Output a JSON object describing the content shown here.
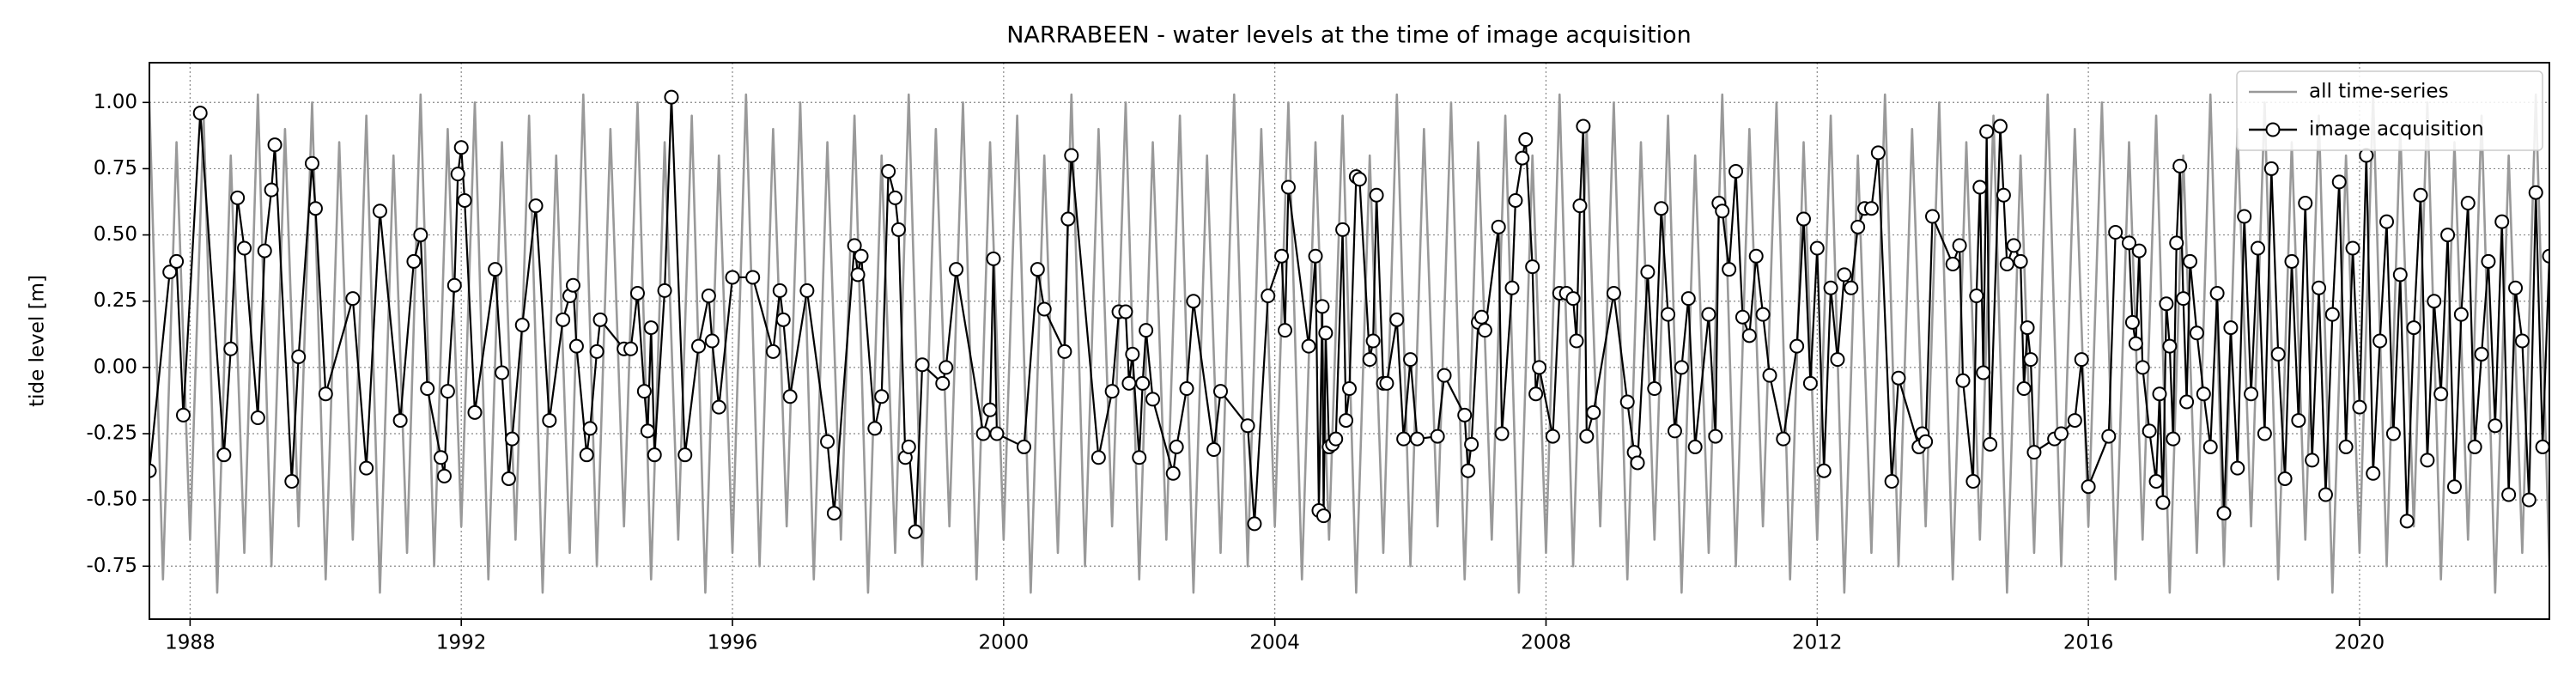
{
  "chart_data": {
    "type": "line",
    "title": "NARRABEEN - water levels at the time of image acquisition",
    "ylabel": "tide level [m]",
    "xlim": [
      1987.4,
      2022.8
    ],
    "ylim": [
      -0.95,
      1.15
    ],
    "xticks": [
      1988,
      1992,
      1996,
      2000,
      2004,
      2008,
      2012,
      2016,
      2020
    ],
    "yticks": [
      {
        "value": -0.75,
        "label": "-0.75"
      },
      {
        "value": -0.5,
        "label": "-0.50"
      },
      {
        "value": -0.25,
        "label": "-0.25"
      },
      {
        "value": 0,
        "label": "0.00"
      },
      {
        "value": 0.25,
        "label": "0.25"
      },
      {
        "value": 0.5,
        "label": "0.50"
      },
      {
        "value": 0.75,
        "label": "0.75"
      },
      {
        "value": 1,
        "label": "1.00"
      }
    ],
    "grid": true,
    "legend": "upper right",
    "series": [
      {
        "name": "all time-series",
        "color": "#999999",
        "x": [
          1987.4,
          1987.6,
          1987.8,
          1988,
          1988.2,
          1988.4,
          1988.6,
          1988.8,
          1989,
          1989.2,
          1989.4,
          1989.6,
          1989.8,
          1990,
          1990.2,
          1990.4,
          1990.6,
          1990.8,
          1991,
          1991.2,
          1991.4,
          1991.6,
          1991.8,
          1992,
          1992.2,
          1992.4,
          1992.6,
          1992.8,
          1993,
          1993.2,
          1993.4,
          1993.6,
          1993.8,
          1994,
          1994.2,
          1994.4,
          1994.6,
          1994.8,
          1995,
          1995.2,
          1995.4,
          1995.6,
          1995.8,
          1996,
          1996.2,
          1996.4,
          1996.6,
          1996.8,
          1997,
          1997.2,
          1997.4,
          1997.6,
          1997.8,
          1998,
          1998.2,
          1998.4,
          1998.6,
          1998.8,
          1999,
          1999.2,
          1999.4,
          1999.6,
          1999.8,
          2000,
          2000.2,
          2000.4,
          2000.6,
          2000.8,
          2001,
          2001.2,
          2001.4,
          2001.6,
          2001.8,
          2002,
          2002.2,
          2002.4,
          2002.6,
          2002.8,
          2003,
          2003.2,
          2003.4,
          2003.6,
          2003.8,
          2004,
          2004.2,
          2004.4,
          2004.6,
          2004.8,
          2005,
          2005.2,
          2005.4,
          2005.6,
          2005.8,
          2006,
          2006.2,
          2006.4,
          2006.6,
          2006.8,
          2007,
          2007.2,
          2007.4,
          2007.6,
          2007.8,
          2008,
          2008.2,
          2008.4,
          2008.6,
          2008.8,
          2009,
          2009.2,
          2009.4,
          2009.6,
          2009.8,
          2010,
          2010.2,
          2010.4,
          2010.6,
          2010.8,
          2011,
          2011.2,
          2011.4,
          2011.6,
          2011.8,
          2012,
          2012.2,
          2012.4,
          2012.6,
          2012.8,
          2013,
          2013.2,
          2013.4,
          2013.6,
          2013.8,
          2014,
          2014.2,
          2014.4,
          2014.6,
          2014.8,
          2015,
          2015.2,
          2015.4,
          2015.6,
          2015.8,
          2016,
          2016.2,
          2016.4,
          2016.6,
          2016.8,
          2017,
          2017.2,
          2017.4,
          2017.6,
          2017.8,
          2018,
          2018.2,
          2018.4,
          2018.6,
          2018.8,
          2019,
          2019.2,
          2019.4,
          2019.6,
          2019.8,
          2020,
          2020.2,
          2020.4,
          2020.6,
          2020.8,
          2021,
          2021.2,
          2021.4,
          2021.6,
          2021.8,
          2022,
          2022.2,
          2022.4,
          2022.6,
          2022.8
        ],
        "values": [
          1.0,
          -0.8,
          0.85,
          -0.65,
          0.95,
          -0.85,
          0.8,
          -0.7,
          1.03,
          -0.75,
          0.9,
          -0.6,
          1.0,
          -0.8,
          0.85,
          -0.65,
          0.95,
          -0.85,
          0.8,
          -0.7,
          1.03,
          -0.75,
          0.9,
          -0.6,
          1.0,
          -0.8,
          0.85,
          -0.65,
          0.95,
          -0.85,
          0.8,
          -0.7,
          1.03,
          -0.75,
          0.9,
          -0.6,
          1.0,
          -0.8,
          0.85,
          -0.65,
          0.95,
          -0.85,
          0.8,
          -0.7,
          1.03,
          -0.75,
          0.9,
          -0.6,
          1.0,
          -0.8,
          0.85,
          -0.65,
          0.95,
          -0.85,
          0.8,
          -0.7,
          1.03,
          -0.75,
          0.9,
          -0.6,
          1.0,
          -0.8,
          0.85,
          -0.65,
          0.95,
          -0.85,
          0.8,
          -0.7,
          1.03,
          -0.75,
          0.9,
          -0.6,
          1.0,
          -0.8,
          0.85,
          -0.65,
          0.95,
          -0.85,
          0.8,
          -0.7,
          1.03,
          -0.75,
          0.9,
          -0.6,
          1.0,
          -0.8,
          0.85,
          -0.65,
          0.95,
          -0.85,
          0.8,
          -0.7,
          1.03,
          -0.75,
          0.9,
          -0.6,
          1.0,
          -0.8,
          0.85,
          -0.65,
          0.95,
          -0.85,
          0.8,
          -0.7,
          1.03,
          -0.75,
          0.9,
          -0.6,
          1.0,
          -0.8,
          0.85,
          -0.65,
          0.95,
          -0.85,
          0.8,
          -0.7,
          1.03,
          -0.75,
          0.9,
          -0.6,
          1.0,
          -0.8,
          0.85,
          -0.65,
          0.95,
          -0.85,
          0.8,
          -0.7,
          1.03,
          -0.75,
          0.9,
          -0.6,
          1.0,
          -0.8,
          0.85,
          -0.65,
          0.95,
          -0.85,
          0.8,
          -0.7,
          1.03,
          -0.75,
          0.9,
          -0.6,
          1.0,
          -0.8,
          0.85,
          -0.65,
          0.95,
          -0.85,
          0.8,
          -0.7,
          1.03,
          -0.75,
          0.9,
          -0.6,
          1.0,
          -0.8,
          0.85,
          -0.65,
          0.95,
          -0.85,
          0.8,
          -0.7,
          1.03,
          -0.75,
          0.9,
          -0.6,
          1.0,
          -0.8,
          0.85,
          -0.65,
          0.95,
          -0.85,
          0.8,
          -0.7,
          1.03,
          -0.75
        ]
      },
      {
        "name": "image acquisition",
        "color": "#000000",
        "marker_fill": "#ffffff",
        "x": [
          1987.4,
          1987.7,
          1987.8,
          1987.9,
          1988.15,
          1988.5,
          1988.6,
          1988.7,
          1988.8,
          1989.0,
          1989.1,
          1989.2,
          1989.25,
          1989.5,
          1989.6,
          1989.8,
          1989.85,
          1990.0,
          1990.4,
          1990.6,
          1990.8,
          1991.1,
          1991.3,
          1991.4,
          1991.5,
          1991.7,
          1991.75,
          1991.8,
          1991.9,
          1991.95,
          1992.0,
          1992.05,
          1992.2,
          1992.5,
          1992.6,
          1992.7,
          1992.75,
          1992.9,
          1993.1,
          1993.3,
          1993.5,
          1993.6,
          1993.65,
          1993.7,
          1993.85,
          1993.9,
          1994.0,
          1994.05,
          1994.4,
          1994.5,
          1994.6,
          1994.7,
          1994.75,
          1994.8,
          1994.85,
          1995.0,
          1995.1,
          1995.3,
          1995.5,
          1995.65,
          1995.7,
          1995.8,
          1996.0,
          1996.3,
          1996.6,
          1996.7,
          1996.75,
          1996.85,
          1997.1,
          1997.4,
          1997.5,
          1997.8,
          1997.85,
          1997.9,
          1998.1,
          1998.2,
          1998.3,
          1998.4,
          1998.45,
          1998.55,
          1998.6,
          1998.7,
          1998.8,
          1999.1,
          1999.15,
          1999.3,
          1999.7,
          1999.8,
          1999.85,
          1999.9,
          2000.3,
          2000.5,
          2000.6,
          2000.9,
          2000.95,
          2001.0,
          2001.4,
          2001.6,
          2001.7,
          2001.8,
          2001.85,
          2001.9,
          2002.0,
          2002.05,
          2002.1,
          2002.2,
          2002.5,
          2002.55,
          2002.7,
          2002.8,
          2003.1,
          2003.2,
          2003.6,
          2003.7,
          2003.9,
          2004.1,
          2004.15,
          2004.2,
          2004.5,
          2004.6,
          2004.65,
          2004.7,
          2004.72,
          2004.75,
          2004.8,
          2004.85,
          2004.9,
          2005.0,
          2005.05,
          2005.1,
          2005.2,
          2005.25,
          2005.4,
          2005.45,
          2005.5,
          2005.6,
          2005.65,
          2005.8,
          2005.9,
          2006.0,
          2006.1,
          2006.4,
          2006.5,
          2006.8,
          2006.85,
          2006.9,
          2007.0,
          2007.05,
          2007.1,
          2007.3,
          2007.35,
          2007.5,
          2007.55,
          2007.65,
          2007.7,
          2007.8,
          2007.85,
          2007.9,
          2008.1,
          2008.2,
          2008.3,
          2008.4,
          2008.45,
          2008.5,
          2008.55,
          2008.6,
          2008.7,
          2009.0,
          2009.2,
          2009.3,
          2009.35,
          2009.5,
          2009.6,
          2009.7,
          2009.8,
          2009.9,
          2010.0,
          2010.1,
          2010.2,
          2010.4,
          2010.5,
          2010.55,
          2010.6,
          2010.7,
          2010.8,
          2010.9,
          2011.0,
          2011.1,
          2011.2,
          2011.3,
          2011.5,
          2011.7,
          2011.8,
          2011.9,
          2012.0,
          2012.1,
          2012.2,
          2012.3,
          2012.4,
          2012.5,
          2012.6,
          2012.7,
          2012.8,
          2012.9,
          2013.1,
          2013.2,
          2013.5,
          2013.55,
          2013.6,
          2013.7,
          2014.0,
          2014.1,
          2014.15,
          2014.3,
          2014.35,
          2014.4,
          2014.45,
          2014.5,
          2014.55,
          2014.7,
          2014.75,
          2014.8,
          2014.9,
          2015.0,
          2015.05,
          2015.1,
          2015.15,
          2015.2,
          2015.5,
          2015.6,
          2015.8,
          2015.9,
          2016.0,
          2016.3,
          2016.4,
          2016.6,
          2016.65,
          2016.7,
          2016.75,
          2016.8,
          2016.9,
          2017.0,
          2017.05,
          2017.1,
          2017.15,
          2017.2,
          2017.25,
          2017.3,
          2017.35,
          2017.4,
          2017.45,
          2017.5,
          2017.6,
          2017.7,
          2017.8,
          2017.9,
          2018.0,
          2018.1,
          2018.2,
          2018.3,
          2018.4,
          2018.5,
          2018.6,
          2018.7,
          2018.8,
          2018.9,
          2019.0,
          2019.1,
          2019.2,
          2019.3,
          2019.4,
          2019.5,
          2019.6,
          2019.7,
          2019.8,
          2019.9,
          2020.0,
          2020.1,
          2020.2,
          2020.3,
          2020.4,
          2020.5,
          2020.6,
          2020.7,
          2020.8,
          2020.9,
          2021.0,
          2021.1,
          2021.2,
          2021.3,
          2021.4,
          2021.5,
          2021.6,
          2021.7,
          2021.8,
          2021.9,
          2022.0,
          2022.1,
          2022.2,
          2022.3,
          2022.4,
          2022.5,
          2022.6,
          2022.7,
          2022.8
        ],
        "values": [
          -0.39,
          0.36,
          0.4,
          -0.18,
          0.96,
          -0.33,
          0.07,
          0.64,
          0.45,
          -0.19,
          0.44,
          0.67,
          0.84,
          -0.43,
          0.04,
          0.77,
          0.6,
          -0.1,
          0.26,
          -0.38,
          0.59,
          -0.2,
          0.4,
          0.5,
          -0.08,
          -0.34,
          -0.41,
          -0.09,
          0.31,
          0.73,
          0.83,
          0.63,
          -0.17,
          0.37,
          -0.02,
          -0.42,
          -0.27,
          0.16,
          0.61,
          -0.2,
          0.18,
          0.27,
          0.31,
          0.08,
          -0.33,
          -0.23,
          0.06,
          0.18,
          0.07,
          0.07,
          0.28,
          -0.09,
          -0.24,
          0.15,
          -0.33,
          0.29,
          1.02,
          -0.33,
          0.08,
          0.27,
          0.1,
          -0.15,
          0.34,
          0.34,
          0.06,
          0.29,
          0.18,
          -0.11,
          0.29,
          -0.28,
          -0.55,
          0.46,
          0.35,
          0.42,
          -0.23,
          -0.11,
          0.74,
          0.64,
          0.52,
          -0.34,
          -0.3,
          -0.62,
          0.01,
          -0.06,
          0.0,
          0.37,
          -0.25,
          -0.16,
          0.41,
          -0.25,
          -0.3,
          0.37,
          0.22,
          0.06,
          0.56,
          0.8,
          -0.34,
          -0.09,
          0.21,
          0.21,
          -0.06,
          0.05,
          -0.34,
          -0.06,
          0.14,
          -0.12,
          -0.4,
          -0.3,
          -0.08,
          0.25,
          -0.31,
          -0.09,
          -0.22,
          -0.59,
          0.27,
          0.42,
          0.14,
          0.68,
          0.08,
          0.42,
          -0.54,
          0.23,
          -0.56,
          0.13,
          -0.3,
          -0.29,
          -0.27,
          0.52,
          -0.2,
          -0.08,
          0.72,
          0.71,
          0.03,
          0.1,
          0.65,
          -0.06,
          -0.06,
          0.18,
          -0.27,
          0.03,
          -0.27,
          -0.26,
          -0.03,
          -0.18,
          -0.39,
          -0.29,
          0.17,
          0.19,
          0.14,
          0.53,
          -0.25,
          0.3,
          0.63,
          0.79,
          0.86,
          0.38,
          -0.1,
          0.0,
          -0.26,
          0.28,
          0.28,
          0.26,
          0.1,
          0.61,
          0.91,
          -0.26,
          -0.17,
          0.28,
          -0.13,
          -0.32,
          -0.36,
          0.36,
          -0.08,
          0.6,
          0.2,
          -0.24,
          0.0,
          0.26,
          -0.3,
          0.2,
          -0.26,
          0.62,
          0.59,
          0.37,
          0.74,
          0.19,
          0.12,
          0.42,
          0.2,
          -0.03,
          -0.27,
          0.08,
          0.56,
          -0.06,
          0.45,
          -0.39,
          0.3,
          0.03,
          0.35,
          0.3,
          0.53,
          0.6,
          0.6,
          0.81,
          -0.43,
          -0.04,
          -0.3,
          -0.25,
          -0.28,
          0.57,
          0.39,
          0.46,
          -0.05,
          -0.43,
          0.27,
          0.68,
          -0.02,
          0.89,
          -0.29,
          0.91,
          0.65,
          0.39,
          0.46,
          0.4,
          -0.08,
          0.15,
          0.03,
          -0.32,
          -0.27,
          -0.25,
          -0.2,
          0.03,
          -0.45,
          -0.26,
          0.51,
          0.47,
          0.17,
          0.09,
          0.44,
          0.0,
          -0.24,
          -0.43,
          -0.1,
          -0.51,
          0.24,
          0.08,
          -0.27,
          0.47,
          0.76,
          0.26,
          -0.13,
          0.4,
          0.13,
          -0.1,
          -0.3,
          0.28,
          -0.55,
          0.15,
          -0.38,
          0.57,
          -0.1,
          0.45,
          -0.25,
          0.75,
          0.05,
          -0.42,
          0.4,
          -0.2,
          0.62,
          -0.35,
          0.3,
          -0.48,
          0.2,
          0.7,
          -0.3,
          0.45,
          -0.15,
          0.8,
          -0.4,
          0.1,
          0.55,
          -0.25,
          0.35,
          -0.58,
          0.15,
          0.65,
          -0.35,
          0.25,
          -0.1,
          0.5,
          -0.45,
          0.2,
          0.62,
          -0.3,
          0.05,
          0.4,
          -0.22,
          0.55,
          -0.48,
          0.3,
          0.1,
          -0.5,
          0.66,
          -0.3,
          0.42
        ]
      }
    ]
  }
}
